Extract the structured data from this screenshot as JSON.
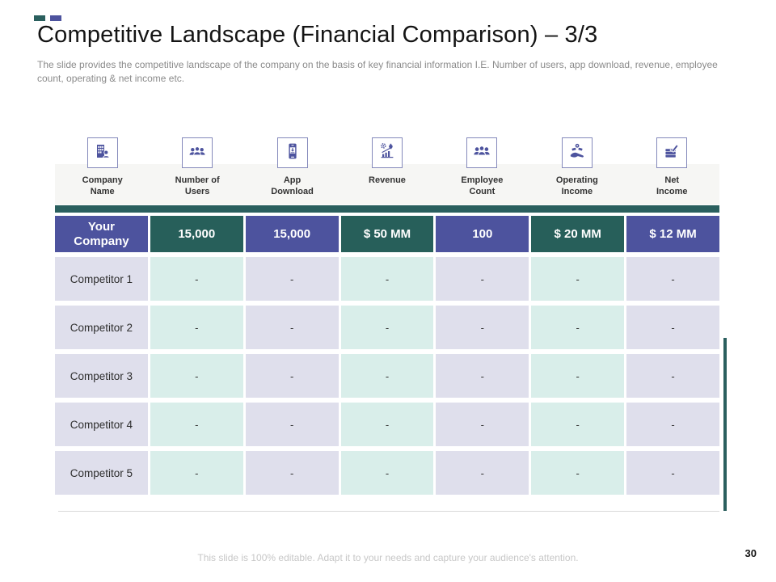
{
  "slide": {
    "title": "Competitive Landscape (Financial Comparison) – 3/3",
    "subtitle": "The slide provides the competitive landscape of the company on the basis of key financial information I.E. Number of users, app download, revenue, employee count, operating & net income etc.",
    "footer": "This slide is 100% editable. Adapt it to your needs and capture your audience's attention.",
    "page_number": "30"
  },
  "colors": {
    "accent_indigo": "#4d539e",
    "accent_teal": "#275f5a",
    "body_lavender": "#dfdfec",
    "body_mint": "#d9eeea"
  },
  "metrics": [
    {
      "icon": "company-building-icon",
      "lines": [
        "Company",
        "Name"
      ]
    },
    {
      "icon": "users-group-icon",
      "lines": [
        "Number of",
        "Users"
      ]
    },
    {
      "icon": "app-download-icon",
      "lines": [
        "App",
        "Download"
      ]
    },
    {
      "icon": "revenue-chart-icon",
      "lines": [
        "Revenue"
      ]
    },
    {
      "icon": "employee-count-icon",
      "lines": [
        "Employee",
        "Count"
      ]
    },
    {
      "icon": "operating-income-icon",
      "lines": [
        "Operating",
        "Income"
      ]
    },
    {
      "icon": "net-income-icon",
      "lines": [
        "Net",
        "Income"
      ]
    }
  ],
  "table": {
    "header": {
      "row_label": "Your Company",
      "values": [
        "15,000",
        "15,000",
        "$ 50 MM",
        "100",
        "$ 20 MM",
        "$ 12 MM"
      ]
    },
    "rows": [
      {
        "name": "Competitor 1",
        "values": [
          "-",
          "-",
          "-",
          "-",
          "-",
          "-"
        ]
      },
      {
        "name": "Competitor 2",
        "values": [
          "-",
          "-",
          "-",
          "-",
          "-",
          "-"
        ]
      },
      {
        "name": "Competitor 3",
        "values": [
          "-",
          "-",
          "-",
          "-",
          "-",
          "-"
        ]
      },
      {
        "name": "Competitor 4",
        "values": [
          "-",
          "-",
          "-",
          "-",
          "-",
          "-"
        ]
      },
      {
        "name": "Competitor 5",
        "values": [
          "-",
          "-",
          "-",
          "-",
          "-",
          "-"
        ]
      }
    ]
  }
}
